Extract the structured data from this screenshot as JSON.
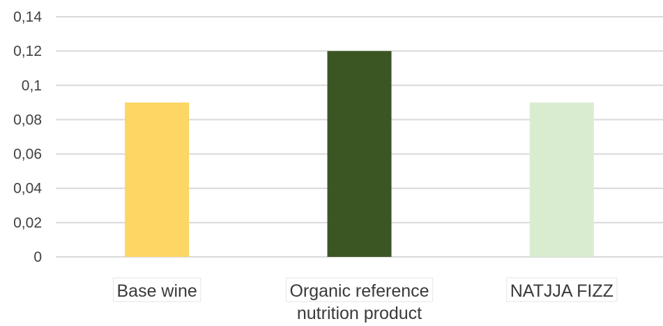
{
  "chart_data": {
    "type": "bar",
    "categories": [
      "Base wine",
      "Organic reference nutrition product",
      "NATJJA FIZZ"
    ],
    "category_lines": [
      [
        "Base wine"
      ],
      [
        "Organic reference",
        "nutrition product"
      ],
      [
        "NATJJA FIZZ"
      ]
    ],
    "values": [
      0.09,
      0.12,
      0.09
    ],
    "bar_colors": [
      "#fdd663",
      "#3b5623",
      "#d9ecd0"
    ],
    "title": "",
    "xlabel": "",
    "ylabel": "",
    "ylim": [
      0,
      0.14
    ],
    "yticks": [
      0,
      0.02,
      0.04,
      0.06,
      0.08,
      0.1,
      0.12,
      0.14
    ],
    "ytick_labels": [
      "0",
      "0,02",
      "0,04",
      "0,06",
      "0,08",
      "0,1",
      "0,12",
      "0,14"
    ],
    "grid": true,
    "legend": "none",
    "gridline_color": "#d9d9d9"
  }
}
